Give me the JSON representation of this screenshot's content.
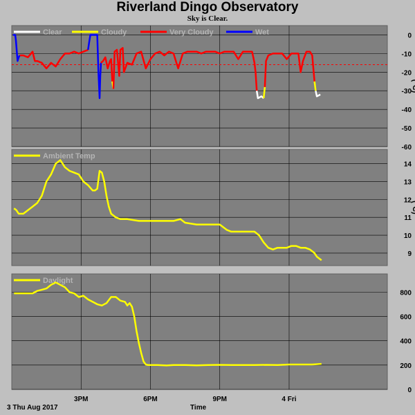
{
  "page": {
    "title": "Riverland Dingo Observatory",
    "subtitle": "Sky is Clear.",
    "date_label": "3 Thu Aug 2017",
    "time_label": "Time"
  },
  "colors": {
    "background": "#c0c0c0",
    "plot": "#808080",
    "grid": "#000000",
    "clear": "#ffffff",
    "cloudy": "#ffff00",
    "very_cloudy": "#ff0000",
    "wet": "#0000ff",
    "threshold": "#ff0000"
  },
  "chart_data": [
    {
      "type": "line",
      "title": "",
      "ylabel": "(°C)",
      "ylim": [
        -60,
        5
      ],
      "yticks": [
        0,
        -10,
        -20,
        -30,
        -40,
        -50,
        -60
      ],
      "xlim": [
        12.0,
        28.25
      ],
      "xticks": [
        {
          "x": 15,
          "label": "3PM"
        },
        {
          "x": 18,
          "label": "6PM"
        },
        {
          "x": 21,
          "label": "9PM"
        },
        {
          "x": 24,
          "label": "4 Fri"
        }
      ],
      "legend": [
        {
          "name": "Clear",
          "color": "#ffffff"
        },
        {
          "name": "Cloudy",
          "color": "#ffff00"
        },
        {
          "name": "Very Cloudy",
          "color": "#ff0000"
        },
        {
          "name": "Wet",
          "color": "#0000ff"
        }
      ],
      "threshold": -16,
      "segments": [
        {
          "cls": "wet",
          "x": [
            12.05,
            12.15,
            12.18,
            12.25,
            12.3,
            12.35
          ],
          "y": [
            0,
            0,
            -3,
            -14,
            -12,
            -11
          ]
        },
        {
          "cls": "very_cloudy",
          "x": [
            12.35,
            12.5,
            12.7,
            12.9,
            13.0,
            13.1,
            13.3,
            13.5,
            13.7,
            13.9,
            14.1,
            14.3,
            14.5,
            14.7,
            14.9,
            15.1,
            15.3
          ],
          "y": [
            -11,
            -11,
            -12,
            -9,
            -14,
            -14,
            -15,
            -18,
            -15,
            -17,
            -13,
            -10,
            -10,
            -9,
            -10,
            -9,
            -8
          ]
        },
        {
          "cls": "wet",
          "x": [
            15.3,
            15.35,
            15.4,
            15.6,
            15.7,
            15.75,
            15.8,
            15.83,
            15.86
          ],
          "y": [
            -8,
            -4,
            0,
            0,
            0,
            -20,
            -34,
            -22,
            -15
          ]
        },
        {
          "cls": "very_cloudy",
          "x": [
            15.86,
            15.95,
            16.05,
            16.15,
            16.25,
            16.3,
            16.35
          ],
          "y": [
            -15,
            -14,
            -12,
            -18,
            -14,
            -13,
            -25
          ]
        },
        {
          "cls": "cloudy",
          "x": [
            16.35,
            16.4
          ],
          "y": [
            -25,
            -29
          ]
        },
        {
          "cls": "very_cloudy",
          "x": [
            16.4,
            16.45,
            16.55,
            16.65,
            16.7,
            16.8,
            16.85,
            17.0,
            17.2,
            17.4,
            17.6,
            17.8,
            18.0,
            18.2,
            18.4,
            18.6,
            18.8,
            19.0,
            19.2,
            19.4,
            19.6,
            19.8,
            20.0,
            20.2,
            20.4,
            20.6,
            20.8,
            21.0,
            21.2,
            21.4,
            21.6,
            21.8,
            22.0,
            22.2,
            22.4,
            22.5,
            22.55,
            22.6
          ],
          "y": [
            -29,
            -9,
            -8,
            -22,
            -8,
            -7,
            -20,
            -15,
            -16,
            -10,
            -9,
            -18,
            -13,
            -10,
            -9,
            -11,
            -9,
            -10,
            -18,
            -10,
            -9,
            -9,
            -9,
            -10,
            -9,
            -9,
            -9,
            -10,
            -9,
            -9,
            -9,
            -13,
            -9,
            -9,
            -9,
            -15,
            -20,
            -30
          ]
        },
        {
          "cls": "clear",
          "x": [
            22.6,
            22.65,
            22.8,
            22.9
          ],
          "y": [
            -30,
            -34,
            -33,
            -34
          ]
        },
        {
          "cls": "cloudy",
          "x": [
            22.9,
            22.95
          ],
          "y": [
            -34,
            -28
          ]
        },
        {
          "cls": "very_cloudy",
          "x": [
            22.95,
            23.0,
            23.1,
            23.3,
            23.5,
            23.7,
            23.9,
            24.1,
            24.3,
            24.4,
            24.5,
            24.6,
            24.75,
            24.9,
            25.0,
            25.1
          ],
          "y": [
            -28,
            -14,
            -11,
            -10,
            -10,
            -10,
            -13,
            -10,
            -10,
            -10,
            -20,
            -14,
            -9,
            -9,
            -11,
            -25
          ]
        },
        {
          "cls": "cloudy",
          "x": [
            25.1,
            25.15
          ],
          "y": [
            -25,
            -30
          ]
        },
        {
          "cls": "clear",
          "x": [
            25.15,
            25.2,
            25.35
          ],
          "y": [
            -30,
            -33,
            -32
          ]
        }
      ]
    },
    {
      "type": "line",
      "title": "",
      "ylabel": "(°C)",
      "ylim": [
        8.3,
        14.8
      ],
      "yticks": [
        14,
        13,
        12,
        11,
        10,
        9
      ],
      "xlim": [
        12.0,
        28.25
      ],
      "xticks": [
        15,
        18,
        21,
        24
      ],
      "series": [
        {
          "name": "Ambient Temp",
          "color": "#ffff00",
          "x": [
            12.1,
            12.2,
            12.3,
            12.5,
            12.7,
            12.9,
            13.1,
            13.3,
            13.5,
            13.7,
            13.9,
            14.1,
            14.3,
            14.5,
            14.7,
            14.9,
            15.1,
            15.3,
            15.5,
            15.6,
            15.7,
            15.8,
            15.9,
            16.0,
            16.1,
            16.2,
            16.3,
            16.5,
            16.7,
            17.0,
            17.5,
            18.0,
            18.5,
            19.0,
            19.3,
            19.5,
            20.0,
            20.5,
            21.0,
            21.3,
            21.5,
            22.0,
            22.5,
            22.7,
            22.9,
            23.1,
            23.3,
            23.5,
            23.7,
            23.9,
            24.1,
            24.3,
            24.5,
            24.7,
            24.9,
            25.1,
            25.2,
            25.4
          ],
          "y": [
            11.5,
            11.4,
            11.2,
            11.2,
            11.4,
            11.6,
            11.8,
            12.2,
            13.0,
            13.4,
            14.0,
            14.2,
            13.8,
            13.6,
            13.5,
            13.4,
            13.0,
            12.8,
            12.5,
            12.5,
            12.6,
            13.6,
            13.5,
            13.0,
            12.2,
            11.6,
            11.2,
            11.0,
            10.9,
            10.9,
            10.8,
            10.8,
            10.8,
            10.8,
            10.9,
            10.7,
            10.6,
            10.6,
            10.6,
            10.3,
            10.2,
            10.2,
            10.2,
            10.0,
            9.6,
            9.3,
            9.2,
            9.3,
            9.3,
            9.3,
            9.4,
            9.4,
            9.3,
            9.3,
            9.2,
            9.0,
            8.8,
            8.6
          ]
        }
      ]
    },
    {
      "type": "line",
      "title": "",
      "ylabel": "",
      "ylim": [
        0,
        950
      ],
      "yticks": [
        800,
        600,
        400,
        200,
        0
      ],
      "xlim": [
        12.0,
        28.25
      ],
      "xticks": [
        15,
        18,
        21,
        24
      ],
      "series": [
        {
          "name": "Daylight",
          "color": "#ffff00",
          "x": [
            12.1,
            12.5,
            12.9,
            13.1,
            13.3,
            13.5,
            13.7,
            13.9,
            14.1,
            14.3,
            14.5,
            14.7,
            14.9,
            15.1,
            15.3,
            15.5,
            15.7,
            15.9,
            16.1,
            16.3,
            16.5,
            16.7,
            16.9,
            17.0,
            17.1,
            17.2,
            17.3,
            17.4,
            17.5,
            17.6,
            17.7,
            17.8,
            17.9,
            18.0,
            18.1,
            18.3,
            18.7,
            19.0,
            19.5,
            20.0,
            20.5,
            21.0,
            21.5,
            22.0,
            22.5,
            23.0,
            23.5,
            24.0,
            24.5,
            25.0,
            25.4
          ],
          "y": [
            790,
            790,
            790,
            810,
            820,
            830,
            860,
            880,
            860,
            840,
            800,
            790,
            760,
            770,
            740,
            720,
            700,
            690,
            710,
            760,
            760,
            730,
            720,
            690,
            710,
            680,
            600,
            480,
            380,
            300,
            230,
            205,
            200,
            200,
            200,
            200,
            197,
            200,
            200,
            198,
            200,
            202,
            200,
            200,
            200,
            202,
            200,
            205,
            205,
            205,
            210
          ]
        }
      ]
    }
  ]
}
